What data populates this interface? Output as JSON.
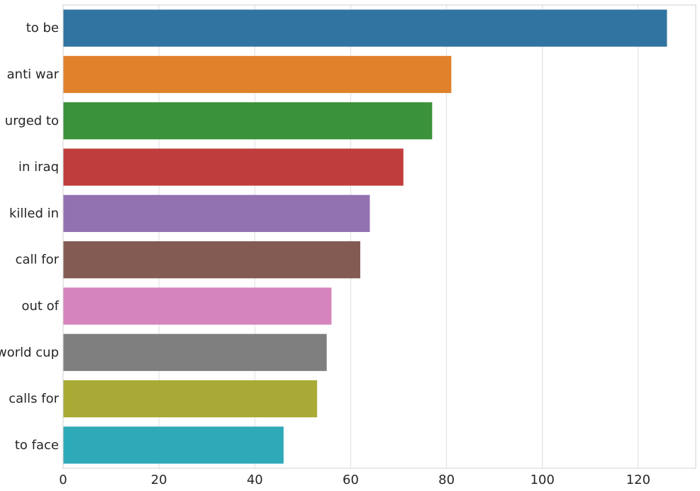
{
  "chart_data": {
    "type": "bar",
    "orientation": "horizontal",
    "title": "",
    "xlabel": "",
    "ylabel": "",
    "categories": [
      "to be",
      "anti war",
      "urged to",
      "in iraq",
      "killed in",
      "call for",
      "out of",
      "world cup",
      "calls for",
      "to face"
    ],
    "values": [
      126,
      81,
      77,
      71,
      64,
      62,
      56,
      55,
      53,
      46
    ],
    "colors": [
      "#3274a1",
      "#e1812c",
      "#3a923a",
      "#c03d3e",
      "#9372b2",
      "#845b53",
      "#d684bd",
      "#7f7f7f",
      "#a9aa35",
      "#2ea9b8"
    ],
    "xlim": [
      0,
      132
    ],
    "xticks": [
      0,
      20,
      40,
      60,
      80,
      100,
      120
    ],
    "grid": true,
    "gridColor": "#dedede",
    "spineColor": "#d0d0d0",
    "legend": "none"
  }
}
